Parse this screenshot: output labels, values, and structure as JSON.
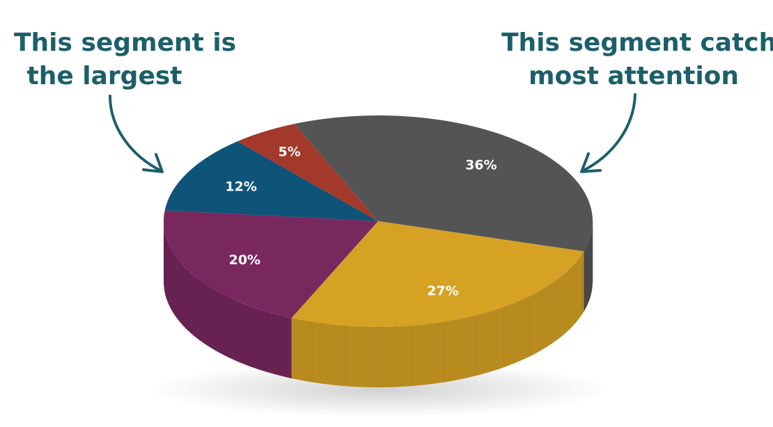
{
  "chart_data": {
    "type": "pie",
    "title": "",
    "slices": [
      {
        "label": "36%",
        "value": 36,
        "color": "#545454"
      },
      {
        "label": "27%",
        "value": 27,
        "color": "#D6A224"
      },
      {
        "label": "20%",
        "value": 20,
        "color": "#79285E"
      },
      {
        "label": "12%",
        "value": 12,
        "color": "#0E5378"
      },
      {
        "label": "5%",
        "value": 5,
        "color": "#A2392B"
      }
    ],
    "style": "3d-tilted"
  },
  "annotations": {
    "left": {
      "lines": [
        "This segment is",
        "the largest"
      ]
    },
    "right": {
      "lines": [
        "This segment catches",
        "most attention"
      ]
    }
  },
  "colors": {
    "annotation": "#1C5F6B",
    "slice_label": "#ffffff"
  },
  "icons": {
    "left_arrow": "curved-arrow-down-right-icon",
    "right_arrow": "curved-arrow-down-left-icon"
  }
}
